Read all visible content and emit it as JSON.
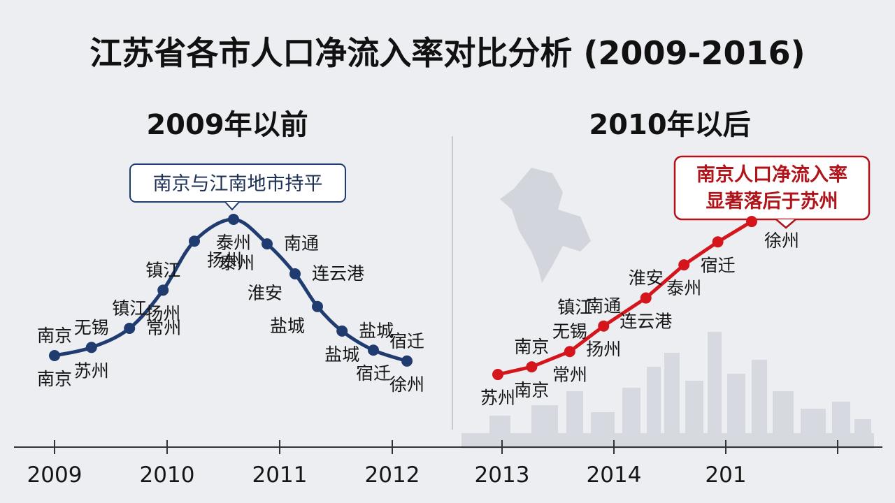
{
  "title": "江苏省各市人口净流入率对比分析 (2009-2016)",
  "colors": {
    "left_series": "#1f3b70",
    "right_series": "#d4161c",
    "callout_red": "#b0141a",
    "background": "#eceef2",
    "axis": "#333333"
  },
  "chart_data": [
    {
      "type": "line",
      "title": "2009年以前",
      "callout": "南京与江南地市持平",
      "x_ticks": [
        "2009",
        "2010",
        "2011",
        "2012"
      ],
      "points": [
        {
          "x": 2009.0,
          "y": 1.0,
          "labels": [
            {
              "text": "南京",
              "pos": "above"
            },
            {
              "text": "南京",
              "pos": "below"
            }
          ]
        },
        {
          "x": 2009.33,
          "y": 1.3,
          "labels": [
            {
              "text": "无锡",
              "pos": "above"
            },
            {
              "text": "苏州",
              "pos": "below"
            }
          ]
        },
        {
          "x": 2009.67,
          "y": 2.0,
          "labels": [
            {
              "text": "镇江",
              "pos": "above"
            },
            {
              "text": "常州",
              "pos": "right"
            }
          ]
        },
        {
          "x": 2009.97,
          "y": 3.4,
          "labels": [
            {
              "text": "镇江",
              "pos": "above"
            },
            {
              "text": "扬州",
              "pos": "below"
            }
          ]
        },
        {
          "x": 2010.25,
          "y": 5.2,
          "labels": [
            {
              "text": "扬州",
              "pos": "below-right"
            }
          ]
        },
        {
          "x": 2010.6,
          "y": 6.0,
          "labels": [
            {
              "text": "泰州",
              "pos": "below"
            }
          ]
        },
        {
          "x": 2010.9,
          "y": 5.1,
          "labels": [
            {
              "text": "南通",
              "pos": "right"
            },
            {
              "text": "泰州",
              "pos": "below-left"
            }
          ]
        },
        {
          "x": 2011.15,
          "y": 4.0,
          "labels": [
            {
              "text": "连云港",
              "pos": "right"
            },
            {
              "text": "淮安",
              "pos": "below-left"
            }
          ]
        },
        {
          "x": 2011.35,
          "y": 2.8,
          "labels": [
            {
              "text": "盐城",
              "pos": "below-left"
            }
          ]
        },
        {
          "x": 2011.57,
          "y": 1.9,
          "labels": [
            {
              "text": "盐城",
              "pos": "right"
            },
            {
              "text": "盐城",
              "pos": "below"
            }
          ]
        },
        {
          "x": 2011.85,
          "y": 1.2,
          "labels": [
            {
              "text": "宿迁",
              "pos": "below"
            }
          ]
        },
        {
          "x": 2012.15,
          "y": 0.8,
          "labels": [
            {
              "text": "宿迁",
              "pos": "above"
            },
            {
              "text": "徐州",
              "pos": "below"
            }
          ]
        }
      ]
    },
    {
      "type": "line",
      "title": "2010年以后",
      "callout": [
        "南京人口净流入率",
        "显著落后于苏州"
      ],
      "x_ticks": [
        "2013",
        "2014",
        "201"
      ],
      "points": [
        {
          "x": 2013.0,
          "y": 0.3,
          "labels": [
            {
              "text": "苏州",
              "pos": "below"
            }
          ]
        },
        {
          "x": 2013.4,
          "y": 0.6,
          "labels": [
            {
              "text": "南京",
              "pos": "above"
            },
            {
              "text": "南京",
              "pos": "below"
            }
          ]
        },
        {
          "x": 2013.85,
          "y": 1.2,
          "labels": [
            {
              "text": "无锡",
              "pos": "above"
            },
            {
              "text": "常州",
              "pos": "below"
            }
          ]
        },
        {
          "x": 2014.25,
          "y": 2.2,
          "labels": [
            {
              "text": "南通",
              "pos": "above"
            },
            {
              "text": "镇江",
              "pos": "above-left"
            },
            {
              "text": "扬州",
              "pos": "below"
            }
          ]
        },
        {
          "x": 2014.75,
          "y": 3.3,
          "labels": [
            {
              "text": "淮安",
              "pos": "above"
            },
            {
              "text": "连云港",
              "pos": "below"
            }
          ]
        },
        {
          "x": 2015.2,
          "y": 4.6,
          "labels": [
            {
              "text": "泰州",
              "pos": "below"
            }
          ]
        },
        {
          "x": 2015.6,
          "y": 5.5,
          "labels": [
            {
              "text": "宿迁",
              "pos": "below"
            }
          ]
        },
        {
          "x": 2016.0,
          "y": 6.3,
          "labels": [
            {
              "text": "徐州",
              "pos": "below-right"
            }
          ]
        }
      ]
    }
  ]
}
